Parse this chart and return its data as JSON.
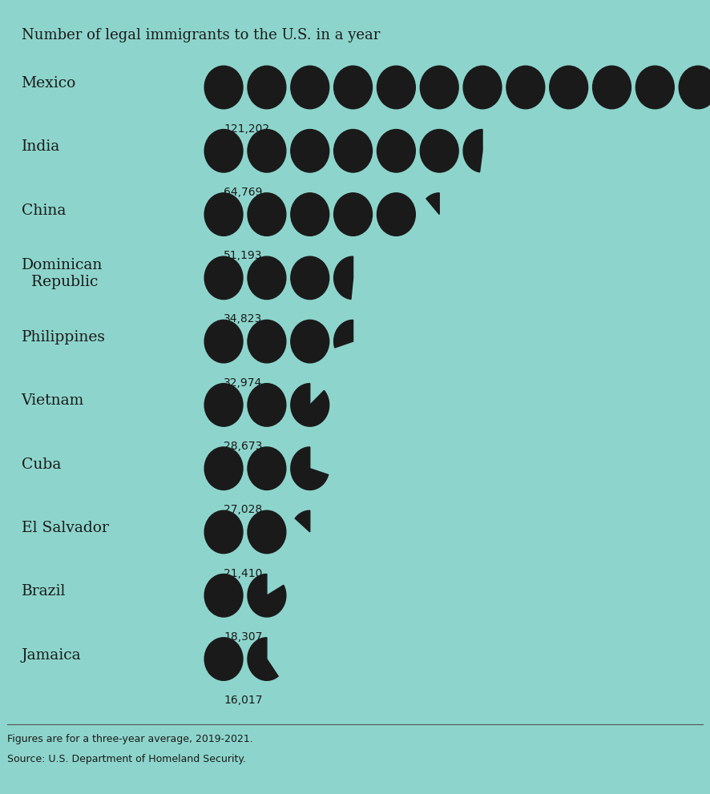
{
  "title": "Number of legal immigrants to the U.S. in a year",
  "footnote1": "Figures are for a three-year average, 2019-2021.",
  "footnote2": "Source: U.S. Department of Homeland Security.",
  "bg_color": "#8dd5cc",
  "circle_color": "#1a1a1a",
  "text_color": "#1a1a1a",
  "unit": 10000,
  "countries": [
    {
      "name": "Mexico",
      "value": 121202,
      "label": "121,202"
    },
    {
      "name": "India",
      "value": 64769,
      "label": "64,769"
    },
    {
      "name": "China",
      "value": 51193,
      "label": "51,193"
    },
    {
      "name": "Dominican\n  Republic",
      "value": 34823,
      "label": "34,823"
    },
    {
      "name": "Philippines",
      "value": 32974,
      "label": "32,974"
    },
    {
      "name": "Vietnam",
      "value": 28673,
      "label": "28,673"
    },
    {
      "name": "Cuba",
      "value": 27028,
      "label": "27,028"
    },
    {
      "name": "El Salvador",
      "value": 21410,
      "label": "21,410"
    },
    {
      "name": "Brazil",
      "value": 18307,
      "label": "18,307"
    },
    {
      "name": "Jamaica",
      "value": 16017,
      "label": "16,017"
    }
  ]
}
